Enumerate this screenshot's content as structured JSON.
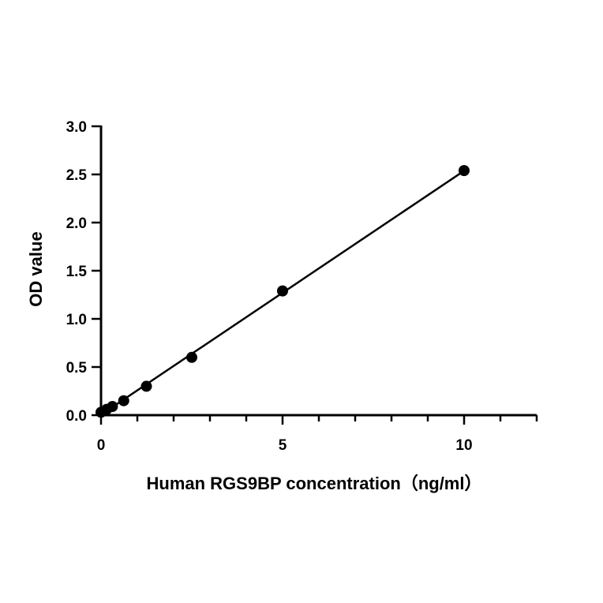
{
  "chart_data": {
    "type": "scatter",
    "title": "",
    "xlabel": "Human RGS9BP concentration（ng/ml）",
    "ylabel": "OD value",
    "xlim": [
      0,
      12
    ],
    "ylim": [
      0,
      3.0
    ],
    "x_ticks": [
      0,
      5,
      10
    ],
    "x_tick_labels": [
      "0",
      "5",
      "10"
    ],
    "x_minor_step": 1,
    "y_ticks": [
      0.0,
      0.5,
      1.0,
      1.5,
      2.0,
      2.5,
      3.0
    ],
    "y_tick_labels": [
      "0.0",
      "0.5",
      "1.0",
      "1.5",
      "2.0",
      "2.5",
      "3.0"
    ],
    "grid": false,
    "fit_line": true,
    "series": [
      {
        "x": [
          0,
          0.156,
          0.313,
          0.625,
          1.25,
          2.5,
          5,
          10
        ],
        "y": [
          0.03,
          0.06,
          0.09,
          0.15,
          0.3,
          0.6,
          1.29,
          2.54
        ]
      }
    ],
    "colors": {
      "marker": "#000000",
      "line": "#000000",
      "axis": "#000000"
    }
  }
}
